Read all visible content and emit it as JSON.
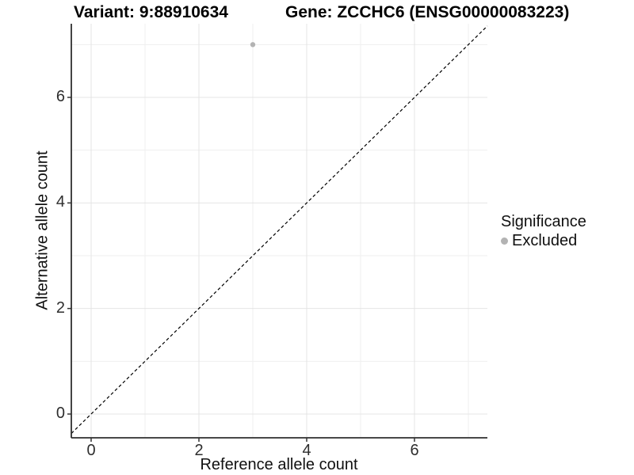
{
  "figure": {
    "title_variant": "Variant: 9:88910634",
    "title_gene": "Gene: ZCCHC6 (ENSG00000083223)"
  },
  "chart_data": {
    "type": "scatter",
    "title": "Variant: 9:88910634    Gene: ZCCHC6 (ENSG00000083223)",
    "xlabel": "Reference allele count",
    "ylabel": "Alternative allele count",
    "xlim": [
      -0.35,
      7.35
    ],
    "ylim": [
      -0.35,
      7.35
    ],
    "x_major_ticks": [
      0,
      2,
      4,
      6
    ],
    "y_major_ticks": [
      0,
      2,
      4,
      6
    ],
    "x_minor_ticks": [
      1,
      3,
      5,
      7
    ],
    "y_minor_ticks": [
      1,
      3,
      5,
      7
    ],
    "grid": true,
    "legend_position": "right",
    "reference_line": {
      "slope": 1,
      "intercept": 0,
      "style": "dashed",
      "color": "#000000"
    },
    "series": [
      {
        "name": "Excluded",
        "color": "#b3b3b3",
        "points": [
          {
            "x": 3,
            "y": 7
          }
        ]
      }
    ],
    "legend": {
      "title": "Significance",
      "entries": [
        {
          "label": "Excluded",
          "color": "#b3b3b3"
        }
      ]
    },
    "style": {
      "grid_major_color": "#e4e4e4",
      "grid_minor_color": "#efefef",
      "axis_line_color": "#2f2f2f",
      "tick_color": "#333333",
      "point_radius": 3.2
    }
  }
}
